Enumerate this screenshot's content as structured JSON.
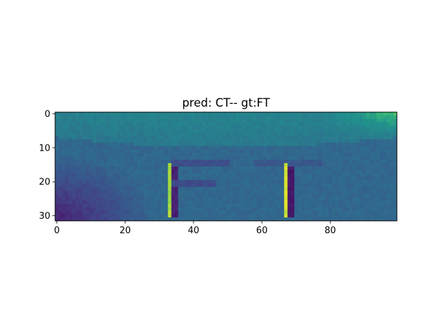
{
  "chart_data": {
    "type": "heatmap",
    "title": "pred: CT-- gt:FT",
    "prediction": "CT--",
    "ground_truth": "FT",
    "xlabel": "",
    "ylabel": "",
    "image_shape": [
      32,
      100
    ],
    "xlim": [
      -0.5,
      99.5
    ],
    "ylim": [
      31.5,
      -0.5
    ],
    "colormap": "viridis",
    "x_ticks": [
      {
        "value": 0,
        "label": "0"
      },
      {
        "value": 20,
        "label": "20"
      },
      {
        "value": 40,
        "label": "40"
      },
      {
        "value": 60,
        "label": "60"
      },
      {
        "value": 80,
        "label": "80"
      }
    ],
    "y_ticks": [
      {
        "value": 0,
        "label": "0"
      },
      {
        "value": 10,
        "label": "10"
      },
      {
        "value": 20,
        "label": "20"
      },
      {
        "value": 30,
        "label": "30"
      }
    ],
    "grid": false,
    "depicted_content": "grayscale crop of a curved surface with dark letters 'FT' shown in viridis colormap"
  }
}
